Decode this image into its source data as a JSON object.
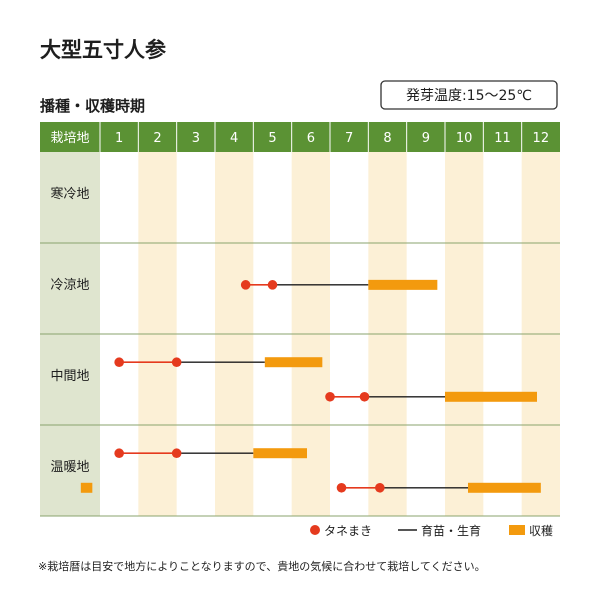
{
  "title": "大型五寸人参",
  "subtitle": "播種・収穫時期",
  "temperature_note": "発芽温度:15～25℃",
  "header_corner": "栽培地",
  "footnote": "※栽培暦は目安で地方によりことなりますので、貴地の気候に合わせて栽培してください。",
  "colors": {
    "header": "#5b9234",
    "region_label_bg": "#dfe5cf",
    "stripe": "#fcf0d6",
    "sow": "#e53a1e",
    "sow_line": "#e53a1e",
    "grow_line": "#1e1e1e",
    "harvest": "#f39a0e"
  },
  "legend": {
    "sow": "タネまき",
    "grow": "育苗・生育",
    "harvest": "収穫"
  },
  "chart_data": {
    "type": "table",
    "x_axis": "month",
    "months": [
      "1",
      "2",
      "3",
      "4",
      "5",
      "6",
      "7",
      "8",
      "9",
      "10",
      "11",
      "12"
    ],
    "regions": [
      {
        "name": "寒冷地",
        "rows": []
      },
      {
        "name": "冷涼地",
        "rows": [
          {
            "sow": [
              4.8,
              5.5
            ],
            "grow": [
              5.5,
              8.0
            ],
            "harvest": [
              8.0,
              9.8
            ]
          }
        ]
      },
      {
        "name": "中間地",
        "rows": [
          {
            "sow": [
              1.5,
              3.0
            ],
            "grow": [
              3.0,
              5.3
            ],
            "harvest": [
              5.3,
              6.8
            ]
          },
          {
            "sow": [
              7.0,
              7.9
            ],
            "grow": [
              7.9,
              10.0
            ],
            "harvest": [
              10.0,
              12.4
            ]
          }
        ]
      },
      {
        "name": "温暖地",
        "rows": [
          {
            "sow": [
              1.5,
              3.0
            ],
            "grow": [
              3.0,
              5.0
            ],
            "harvest": [
              5.0,
              6.4
            ]
          },
          {
            "sow": [
              7.3,
              8.3
            ],
            "grow": [
              8.3,
              10.6
            ],
            "harvest": [
              10.6,
              12.5
            ],
            "harvest_prev": [
              0.5,
              0.8
            ]
          }
        ]
      }
    ]
  }
}
